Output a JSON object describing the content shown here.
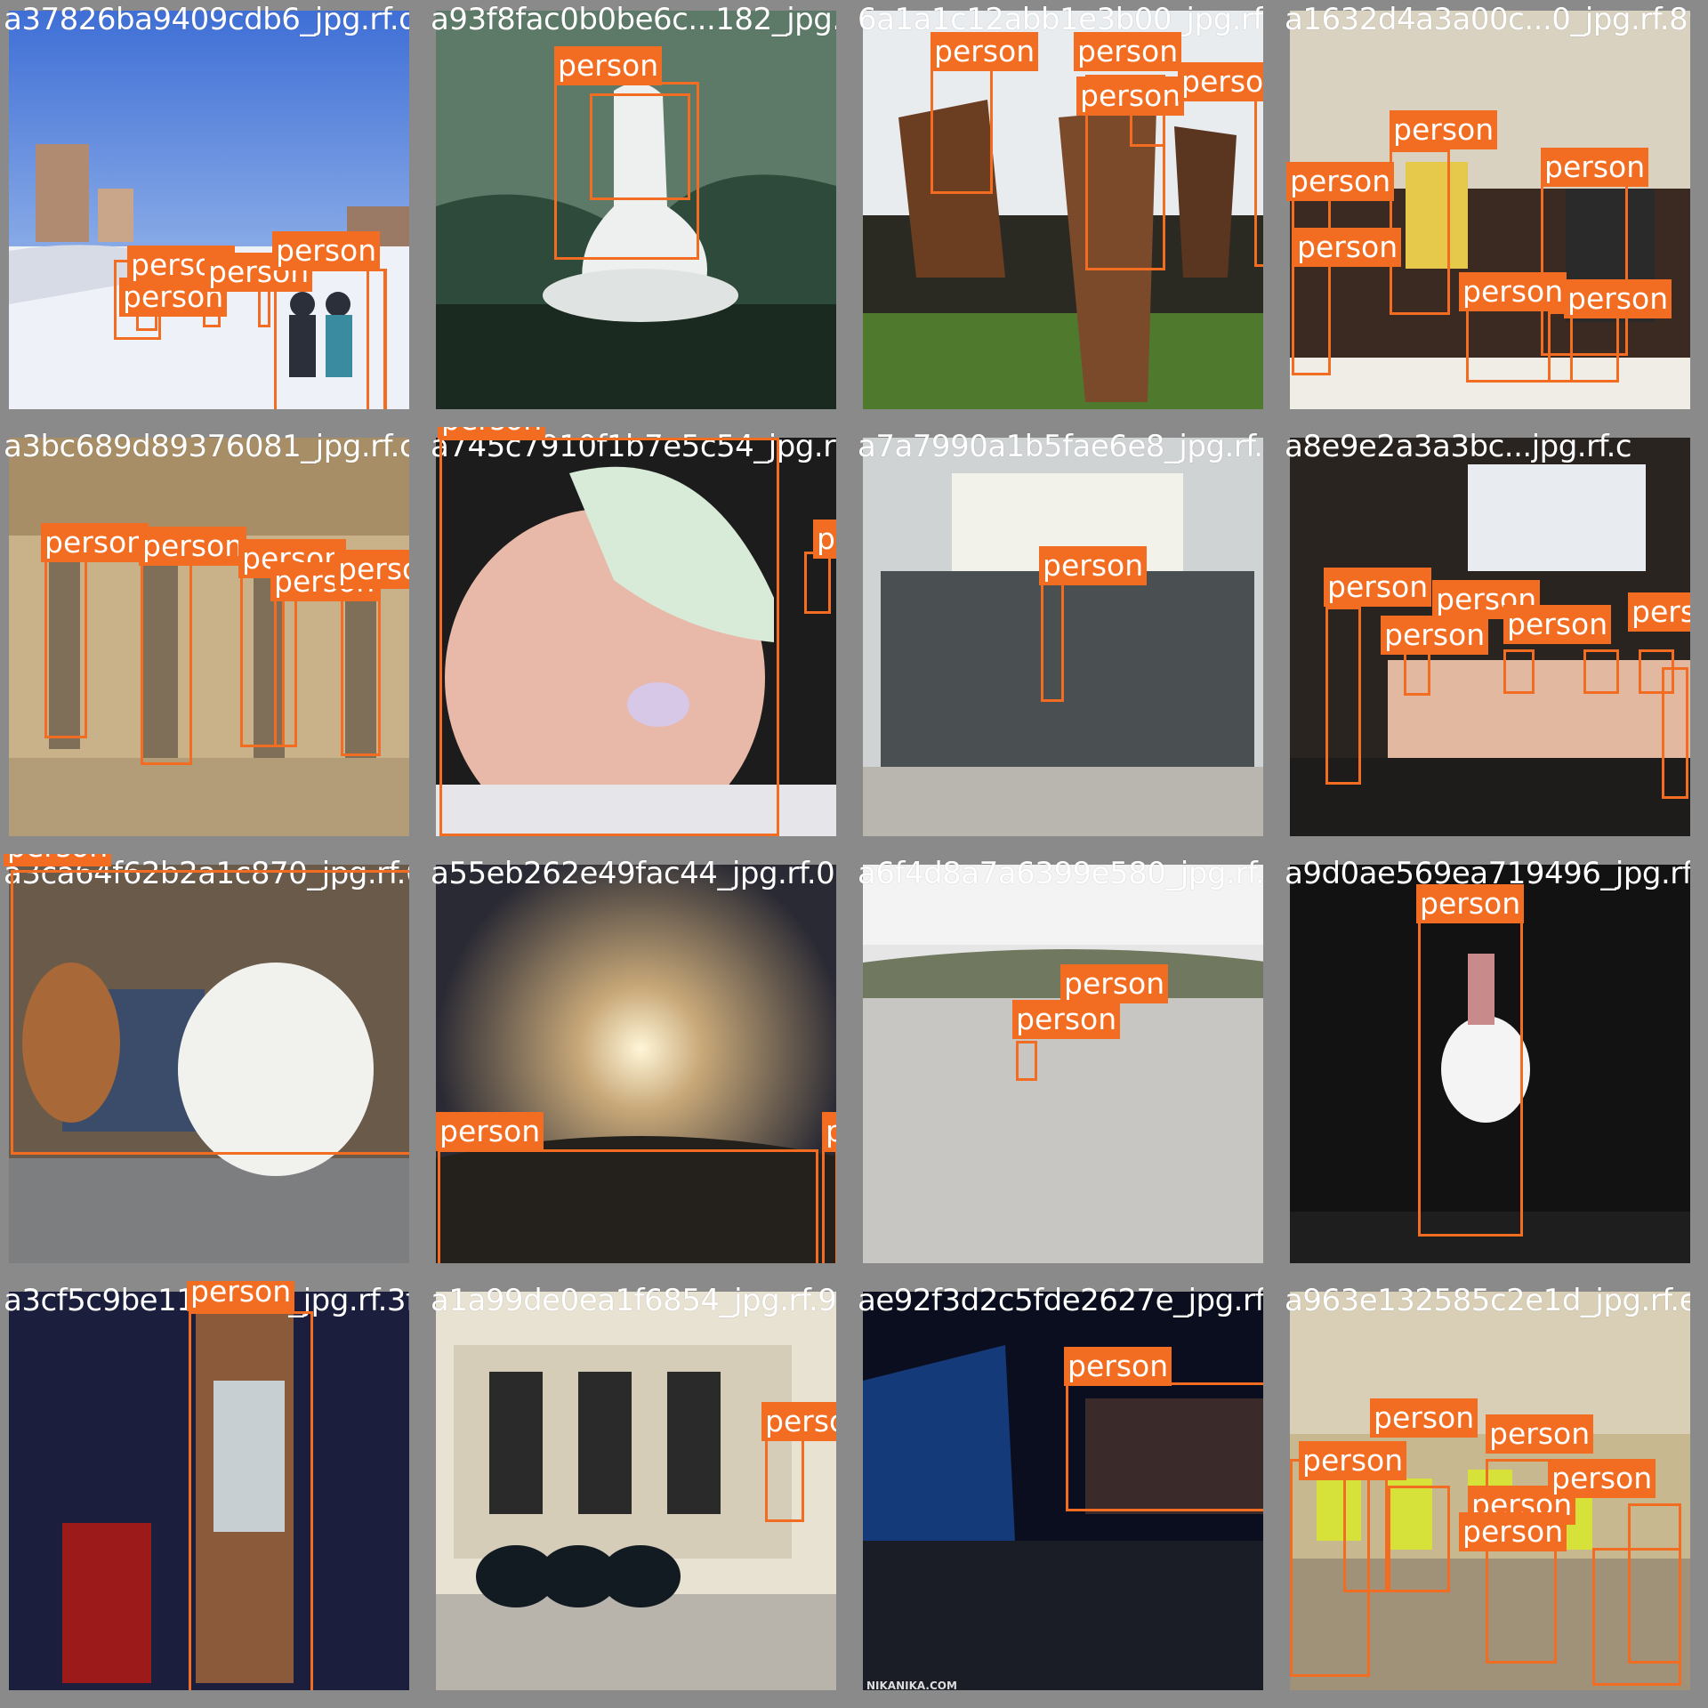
{
  "colors": {
    "box": "#f26d21",
    "border_gray": "#8a8a8a"
  },
  "label": "person",
  "tiles": [
    {
      "file": "a37826ba9409cdb6_jpg.rf.da9706aca0b6c...182_jpg.rf.ee6",
      "scene": "snow-street",
      "boxes": [
        [
          118,
          280,
          53,
          90
        ],
        [
          143,
          300,
          24,
          52
        ],
        [
          218,
          300,
          20,
          60
        ],
        [
          282,
          300,
          14,
          60
        ],
        [
          290,
          300,
          10,
          60
        ],
        [
          310,
          300,
          14,
          50
        ],
        [
          333,
          300,
          12,
          40
        ],
        [
          308,
          300,
          127,
          163
        ],
        [
          415,
          300,
          15,
          163
        ]
      ]
    },
    {
      "file": "a93f8fac0b0be6c...182_jpg.rf.ee6",
      "scene": "statue",
      "boxes": [
        [
          133,
          80,
          163,
          200
        ],
        [
          173,
          93,
          113,
          130
        ]
      ]
    },
    {
      "file": "6a1a1c12abb1e3b00_jpg.rf.0a",
      "scene": "horses",
      "boxes": [
        [
          76,
          60,
          70,
          158
        ],
        [
          250,
          78,
          90,
          220
        ],
        [
          304,
          90,
          50,
          75
        ],
        [
          420,
          92,
          16,
          205
        ]
      ]
    },
    {
      "file": "a1632d4a3a00c...0_jpg.rf.89",
      "scene": "conference-room",
      "boxes": [
        [
          30,
          190,
          40,
          230
        ],
        [
          140,
          150,
          68,
          200
        ],
        [
          310,
          190,
          98,
          210
        ],
        [
          238,
          308,
          100,
          130
        ],
        [
          296,
          308,
          80,
          110
        ]
      ]
    },
    {
      "file": "a3bc689d89376081_jpg.rf.c9f45cf9d01b7e5c54",
      "scene": "caryatids",
      "boxes": [
        [
          40,
          105,
          48,
          250
        ],
        [
          140,
          110,
          58,
          260
        ],
        [
          265,
          140,
          50,
          218
        ],
        [
          302,
          168,
          20,
          190
        ],
        [
          368,
          168,
          45,
          200
        ]
      ]
    },
    {
      "file": "a745c7910f1b7e5c54_jpg.rf.91",
      "scene": "baby",
      "boxes": [
        [
          10,
          10,
          380,
          455
        ],
        [
          414,
          140,
          32,
          75
        ]
      ]
    },
    {
      "file": "a7a7990a1b5fae6e8_jpg.rf.71",
      "scene": "record-shop",
      "boxes": [
        [
          200,
          162,
          26,
          135
        ]
      ]
    },
    {
      "file": "a8e9e2a3a3bc...jpg.rf.c",
      "scene": "panel-stage",
      "boxes": [
        [
          40,
          200,
          40,
          200
        ],
        [
          150,
          250,
          30,
          50
        ],
        [
          200,
          250,
          30,
          50
        ],
        [
          265,
          250,
          35,
          45
        ],
        [
          335,
          250,
          40,
          45
        ],
        [
          402,
          250,
          40,
          45
        ],
        [
          448,
          280,
          12,
          140
        ]
      ]
    },
    {
      "file": "a3ca64f62b2a1c870_jpg.rf.6dae55eb262e49fac44",
      "scene": "dogs",
      "boxes": [
        [
          10,
          20,
          455,
          365
        ]
      ]
    },
    {
      "file": "a55eb262e49fac44_jpg.rf.0a",
      "scene": "sunset-crowd",
      "boxes": [
        [
          10,
          325,
          430,
          140
        ],
        [
          442,
          325,
          16,
          140
        ]
      ]
    },
    {
      "file": "a6f4d8a7a6399e580_jpg.rf.1ea",
      "scene": "beach",
      "boxes": [
        [
          180,
          200,
          26,
          45
        ]
      ]
    },
    {
      "file": "a9d0ae569ea719496_jpg.rf.8",
      "scene": "singer",
      "boxes": [
        [
          152,
          65,
          118,
          360
        ]
      ]
    },
    {
      "file": "a3cf5c9be118a580_jpg.rf.3fe",
      "scene": "comedian",
      "boxes": [
        [
          210,
          25,
          140,
          435
        ]
      ]
    },
    {
      "file": "a1a99de0ea1f6854_jpg.rf.9b",
      "scene": "storefront",
      "boxes": [
        [
          378,
          168,
          44,
          95
        ]
      ]
    },
    {
      "file": "ae92f3d2c5fde2627e_jpg.rf.34",
      "scene": "dj",
      "boxes": [
        [
          235,
          110,
          228,
          145
        ]
      ]
    },
    {
      "file": "a963e132585c2e1d_jpg.rf.e7",
      "scene": "workshop",
      "boxes": [
        [
          10,
          200,
          90,
          245
        ],
        [
          70,
          210,
          50,
          140
        ],
        [
          120,
          230,
          70,
          120
        ],
        [
          180,
          220,
          60,
          140
        ],
        [
          230,
          200,
          80,
          230
        ],
        [
          300,
          210,
          70,
          160
        ],
        [
          350,
          300,
          100,
          160
        ],
        [
          390,
          250,
          60,
          180
        ]
      ]
    }
  ],
  "watermark": "NIKANIKA.COM"
}
